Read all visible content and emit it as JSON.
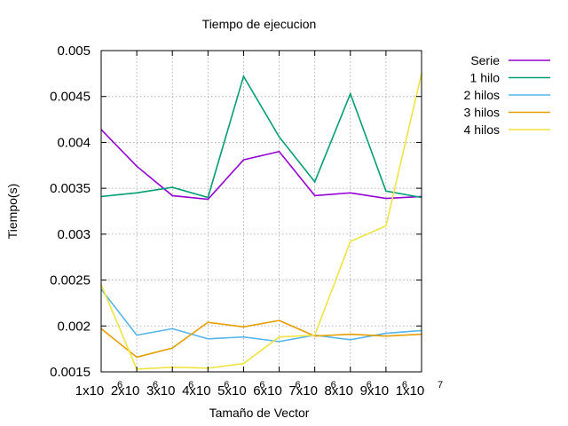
{
  "chart_data": {
    "type": "line",
    "title": "Tiempo de ejecucion",
    "xlabel": "Tamaño de Vector",
    "ylabel": "Tiempo(s)",
    "x": [
      1000000,
      2000000,
      3000000,
      4000000,
      5000000,
      6000000,
      7000000,
      8000000,
      9000000,
      10000000
    ],
    "x_tick_labels": [
      {
        "base": "1x10",
        "exp": "6"
      },
      {
        "base": "2x10",
        "exp": "6"
      },
      {
        "base": "3x10",
        "exp": "6"
      },
      {
        "base": "4x10",
        "exp": "6"
      },
      {
        "base": "5x10",
        "exp": "6"
      },
      {
        "base": "6x10",
        "exp": "6"
      },
      {
        "base": "7x10",
        "exp": "6"
      },
      {
        "base": "8x10",
        "exp": "6"
      },
      {
        "base": "9x10",
        "exp": "6"
      },
      {
        "base": "1x10",
        "exp": "7"
      }
    ],
    "y_ticks": [
      "0.0015",
      "0.002",
      "0.0025",
      "0.003",
      "0.0035",
      "0.004",
      "0.0045",
      "0.005"
    ],
    "xlim": [
      1000000,
      10000000
    ],
    "ylim": [
      0.0015,
      0.005
    ],
    "grid": true,
    "legend_position": "outside-top-right",
    "series": [
      {
        "name": "Serie",
        "color": "#9400d3",
        "values": [
          0.00414,
          0.00374,
          0.00342,
          0.00338,
          0.00381,
          0.0039,
          0.00342,
          0.00345,
          0.00339,
          0.00341
        ]
      },
      {
        "name": "1 hilo",
        "color": "#009e73",
        "values": [
          0.00341,
          0.00345,
          0.00351,
          0.0034,
          0.00472,
          0.00406,
          0.00357,
          0.00453,
          0.00347,
          0.0034
        ]
      },
      {
        "name": "2 hilos",
        "color": "#56b4e9",
        "values": [
          0.0024,
          0.0019,
          0.00197,
          0.00186,
          0.00188,
          0.00183,
          0.0019,
          0.00185,
          0.00192,
          0.00195
        ]
      },
      {
        "name": "3 hilos",
        "color": "#e69f00",
        "values": [
          0.00197,
          0.00166,
          0.00176,
          0.00204,
          0.00199,
          0.00206,
          0.00189,
          0.00191,
          0.00189,
          0.00191
        ]
      },
      {
        "name": "4 hilos",
        "color": "#f0e442",
        "values": [
          0.00245,
          0.00153,
          0.00155,
          0.00154,
          0.00159,
          0.00188,
          0.0019,
          0.00292,
          0.00309,
          0.00475
        ]
      }
    ]
  }
}
